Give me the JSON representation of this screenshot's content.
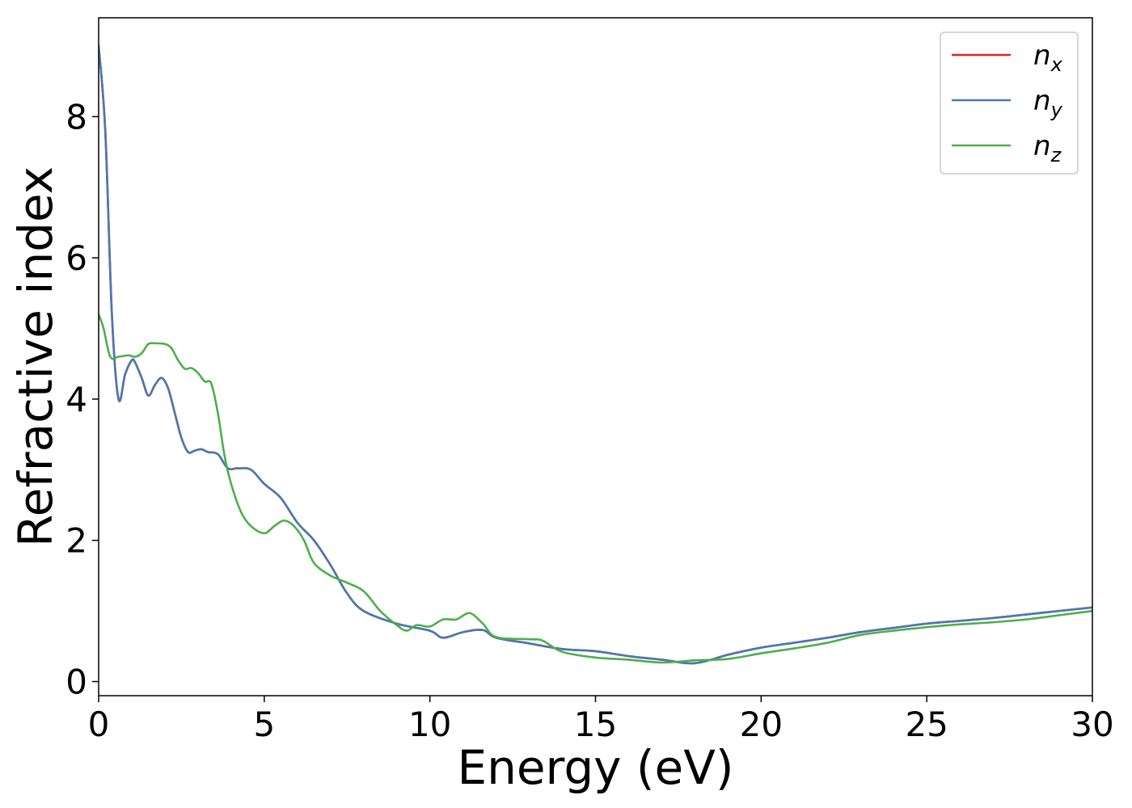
{
  "chart_data": {
    "type": "line",
    "title": "",
    "xlabel": "Energy (eV)",
    "ylabel": "Refractive index",
    "xlim": [
      0,
      30
    ],
    "ylim": [
      -0.2,
      9.4
    ],
    "xticks": [
      0,
      5,
      10,
      15,
      20,
      25,
      30
    ],
    "xtick_labels": [
      "0",
      "5",
      "10",
      "15",
      "20",
      "25",
      "30"
    ],
    "yticks": [
      0,
      2,
      4,
      6,
      8
    ],
    "ytick_labels": [
      "0",
      "2",
      "4",
      "6",
      "8"
    ],
    "grid": false,
    "legend_position": "top-right",
    "series": [
      {
        "name": "n",
        "subscript": "x",
        "color": "#d62728",
        "x": [
          0,
          0.2,
          0.4,
          0.6,
          0.8,
          1.0,
          1.1,
          1.3,
          1.5,
          1.7,
          1.9,
          2.1,
          2.3,
          2.5,
          2.7,
          2.9,
          3.1,
          3.3,
          3.6,
          3.9,
          4.2,
          4.6,
          5.0,
          5.5,
          6.0,
          6.5,
          7.0,
          7.5,
          8.0,
          9.0,
          10.0,
          10.4,
          11.0,
          11.6,
          12.0,
          13.0,
          14.0,
          15.0,
          16.0,
          17.0,
          18.0,
          19.0,
          20.0,
          21.0,
          22.0,
          23.0,
          24.0,
          25.0,
          26.0,
          27.0,
          28.0,
          29.0,
          30.0
        ],
        "y": [
          9.0,
          7.8,
          5.2,
          4.0,
          4.35,
          4.55,
          4.52,
          4.3,
          4.05,
          4.2,
          4.3,
          4.15,
          3.8,
          3.45,
          3.25,
          3.27,
          3.29,
          3.25,
          3.22,
          3.02,
          3.02,
          3.0,
          2.8,
          2.6,
          2.25,
          2.0,
          1.65,
          1.25,
          1.0,
          0.82,
          0.72,
          0.62,
          0.7,
          0.73,
          0.62,
          0.54,
          0.46,
          0.43,
          0.36,
          0.31,
          0.26,
          0.38,
          0.48,
          0.55,
          0.62,
          0.7,
          0.76,
          0.82,
          0.86,
          0.9,
          0.95,
          1.0,
          1.05
        ]
      },
      {
        "name": "n",
        "subscript": "y",
        "color": "#4a78b0",
        "x": [
          0,
          0.2,
          0.4,
          0.6,
          0.8,
          1.0,
          1.1,
          1.3,
          1.5,
          1.7,
          1.9,
          2.1,
          2.3,
          2.5,
          2.7,
          2.9,
          3.1,
          3.3,
          3.6,
          3.9,
          4.2,
          4.6,
          5.0,
          5.5,
          6.0,
          6.5,
          7.0,
          7.5,
          8.0,
          9.0,
          10.0,
          10.4,
          11.0,
          11.6,
          12.0,
          13.0,
          14.0,
          15.0,
          16.0,
          17.0,
          18.0,
          19.0,
          20.0,
          21.0,
          22.0,
          23.0,
          24.0,
          25.0,
          26.0,
          27.0,
          28.0,
          29.0,
          30.0
        ],
        "y": [
          9.0,
          7.8,
          5.2,
          4.0,
          4.35,
          4.55,
          4.52,
          4.3,
          4.05,
          4.2,
          4.3,
          4.15,
          3.8,
          3.45,
          3.25,
          3.27,
          3.29,
          3.25,
          3.22,
          3.02,
          3.02,
          3.0,
          2.8,
          2.6,
          2.25,
          2.0,
          1.65,
          1.25,
          1.0,
          0.82,
          0.72,
          0.62,
          0.7,
          0.73,
          0.62,
          0.54,
          0.46,
          0.43,
          0.36,
          0.31,
          0.26,
          0.38,
          0.48,
          0.55,
          0.62,
          0.7,
          0.76,
          0.82,
          0.86,
          0.9,
          0.95,
          1.0,
          1.05
        ]
      },
      {
        "name": "n",
        "subscript": "z",
        "color": "#4daf4a",
        "x": [
          0,
          0.15,
          0.35,
          0.6,
          0.9,
          1.1,
          1.3,
          1.5,
          1.7,
          2.0,
          2.2,
          2.4,
          2.6,
          2.8,
          3.0,
          3.2,
          3.4,
          3.6,
          3.8,
          4.0,
          4.3,
          4.6,
          5.0,
          5.3,
          5.6,
          5.9,
          6.2,
          6.5,
          7.0,
          7.5,
          8.0,
          8.5,
          9.0,
          9.3,
          9.6,
          10.0,
          10.4,
          10.8,
          11.2,
          11.6,
          12.0,
          13.0,
          13.4,
          14.0,
          15.0,
          16.0,
          17.0,
          18.0,
          19.0,
          20.0,
          21.0,
          22.0,
          23.0,
          24.0,
          25.0,
          26.0,
          27.0,
          28.0,
          29.0,
          30.0
        ],
        "y": [
          5.2,
          5.0,
          4.6,
          4.6,
          4.62,
          4.6,
          4.65,
          4.78,
          4.79,
          4.78,
          4.72,
          4.55,
          4.43,
          4.44,
          4.37,
          4.25,
          4.22,
          3.8,
          3.2,
          2.8,
          2.4,
          2.2,
          2.1,
          2.2,
          2.28,
          2.2,
          2.0,
          1.68,
          1.5,
          1.4,
          1.28,
          1.0,
          0.8,
          0.72,
          0.8,
          0.78,
          0.88,
          0.88,
          0.97,
          0.82,
          0.63,
          0.6,
          0.58,
          0.42,
          0.34,
          0.31,
          0.27,
          0.3,
          0.32,
          0.4,
          0.47,
          0.55,
          0.66,
          0.72,
          0.77,
          0.81,
          0.84,
          0.88,
          0.94,
          1.0
        ]
      }
    ]
  }
}
